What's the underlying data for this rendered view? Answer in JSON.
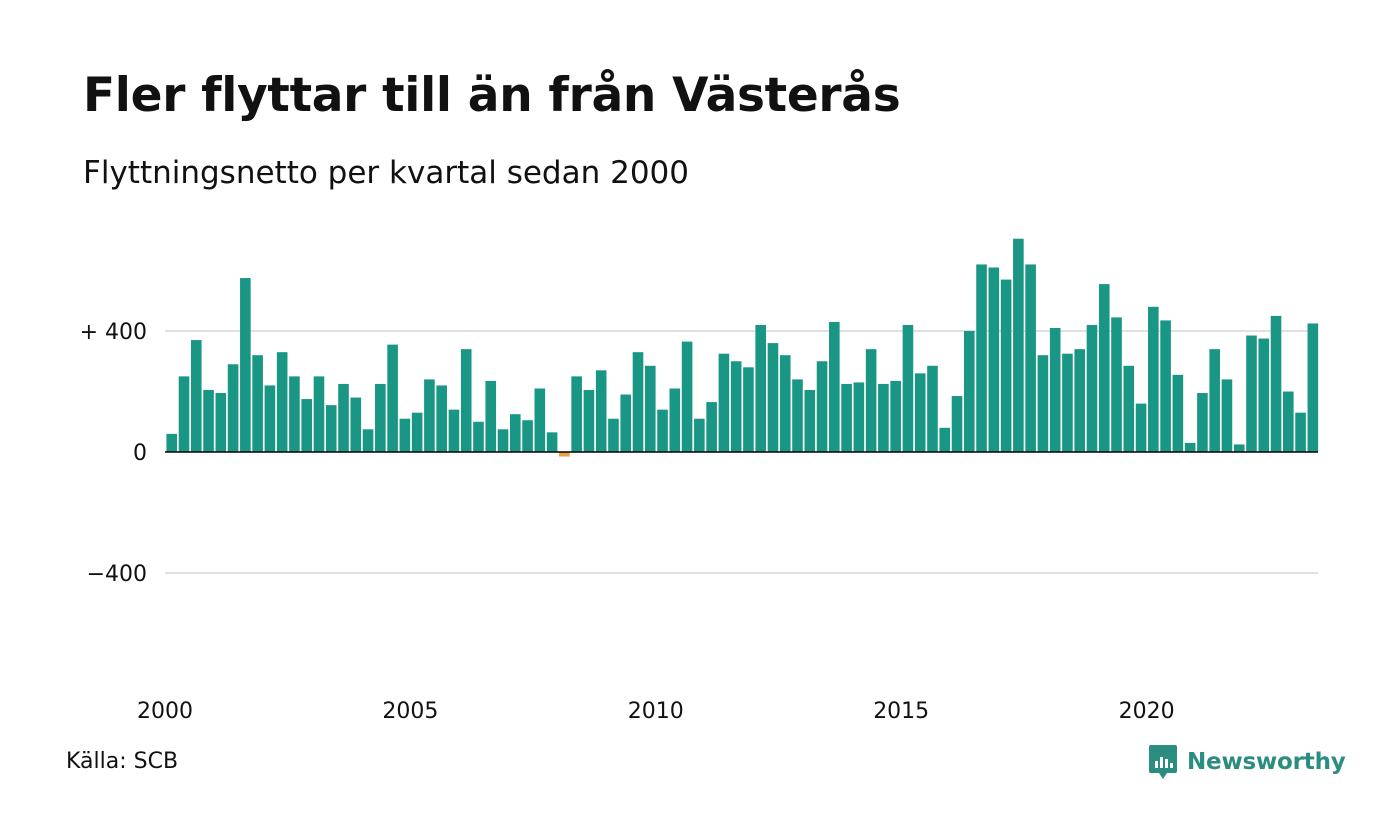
{
  "title": "Fler flyttar till än från Västerås",
  "subtitle": "Flyttningsnetto per kvartal sedan 2000",
  "source": "Källa: SCB",
  "brand": {
    "name": "Newsworthy",
    "icon": "newsworthy-logo-icon"
  },
  "colors": {
    "positive": "#1a9685",
    "negative": "#e8a33d",
    "grid": "#e0e0e0",
    "axis": "#000000"
  },
  "chart_data": {
    "type": "bar",
    "title": "Fler flyttar till än från Västerås",
    "subtitle": "Flyttningsnetto per kvartal sedan 2000",
    "xlabel": "",
    "ylabel": "",
    "ylim": [
      -750,
      720
    ],
    "grid": true,
    "legend": "none",
    "yticks": [
      {
        "value": 400,
        "label": "+ 400"
      },
      {
        "value": 0,
        "label": "0"
      },
      {
        "value": -400,
        "label": "−400"
      }
    ],
    "xticks": [
      {
        "value": 2000,
        "label": "2000"
      },
      {
        "value": 2005,
        "label": "2005"
      },
      {
        "value": 2010,
        "label": "2010"
      },
      {
        "value": 2015,
        "label": "2015"
      },
      {
        "value": 2020,
        "label": "2020"
      }
    ],
    "start_period": "2000 Q1",
    "values": [
      60,
      250,
      370,
      205,
      195,
      290,
      575,
      320,
      220,
      330,
      250,
      175,
      250,
      155,
      225,
      180,
      75,
      225,
      355,
      110,
      130,
      240,
      220,
      140,
      340,
      100,
      235,
      75,
      125,
      105,
      210,
      65,
      -15,
      250,
      205,
      270,
      110,
      190,
      330,
      285,
      140,
      210,
      365,
      110,
      165,
      325,
      300,
      280,
      420,
      360,
      320,
      240,
      205,
      300,
      430,
      225,
      230,
      340,
      225,
      235,
      420,
      260,
      285,
      80,
      185,
      400,
      620,
      610,
      570,
      705,
      620,
      320,
      410,
      325,
      340,
      420,
      555,
      445,
      285,
      160,
      480,
      435,
      255,
      30,
      195,
      340,
      240,
      25,
      385,
      375,
      450,
      200,
      130,
      425
    ]
  }
}
